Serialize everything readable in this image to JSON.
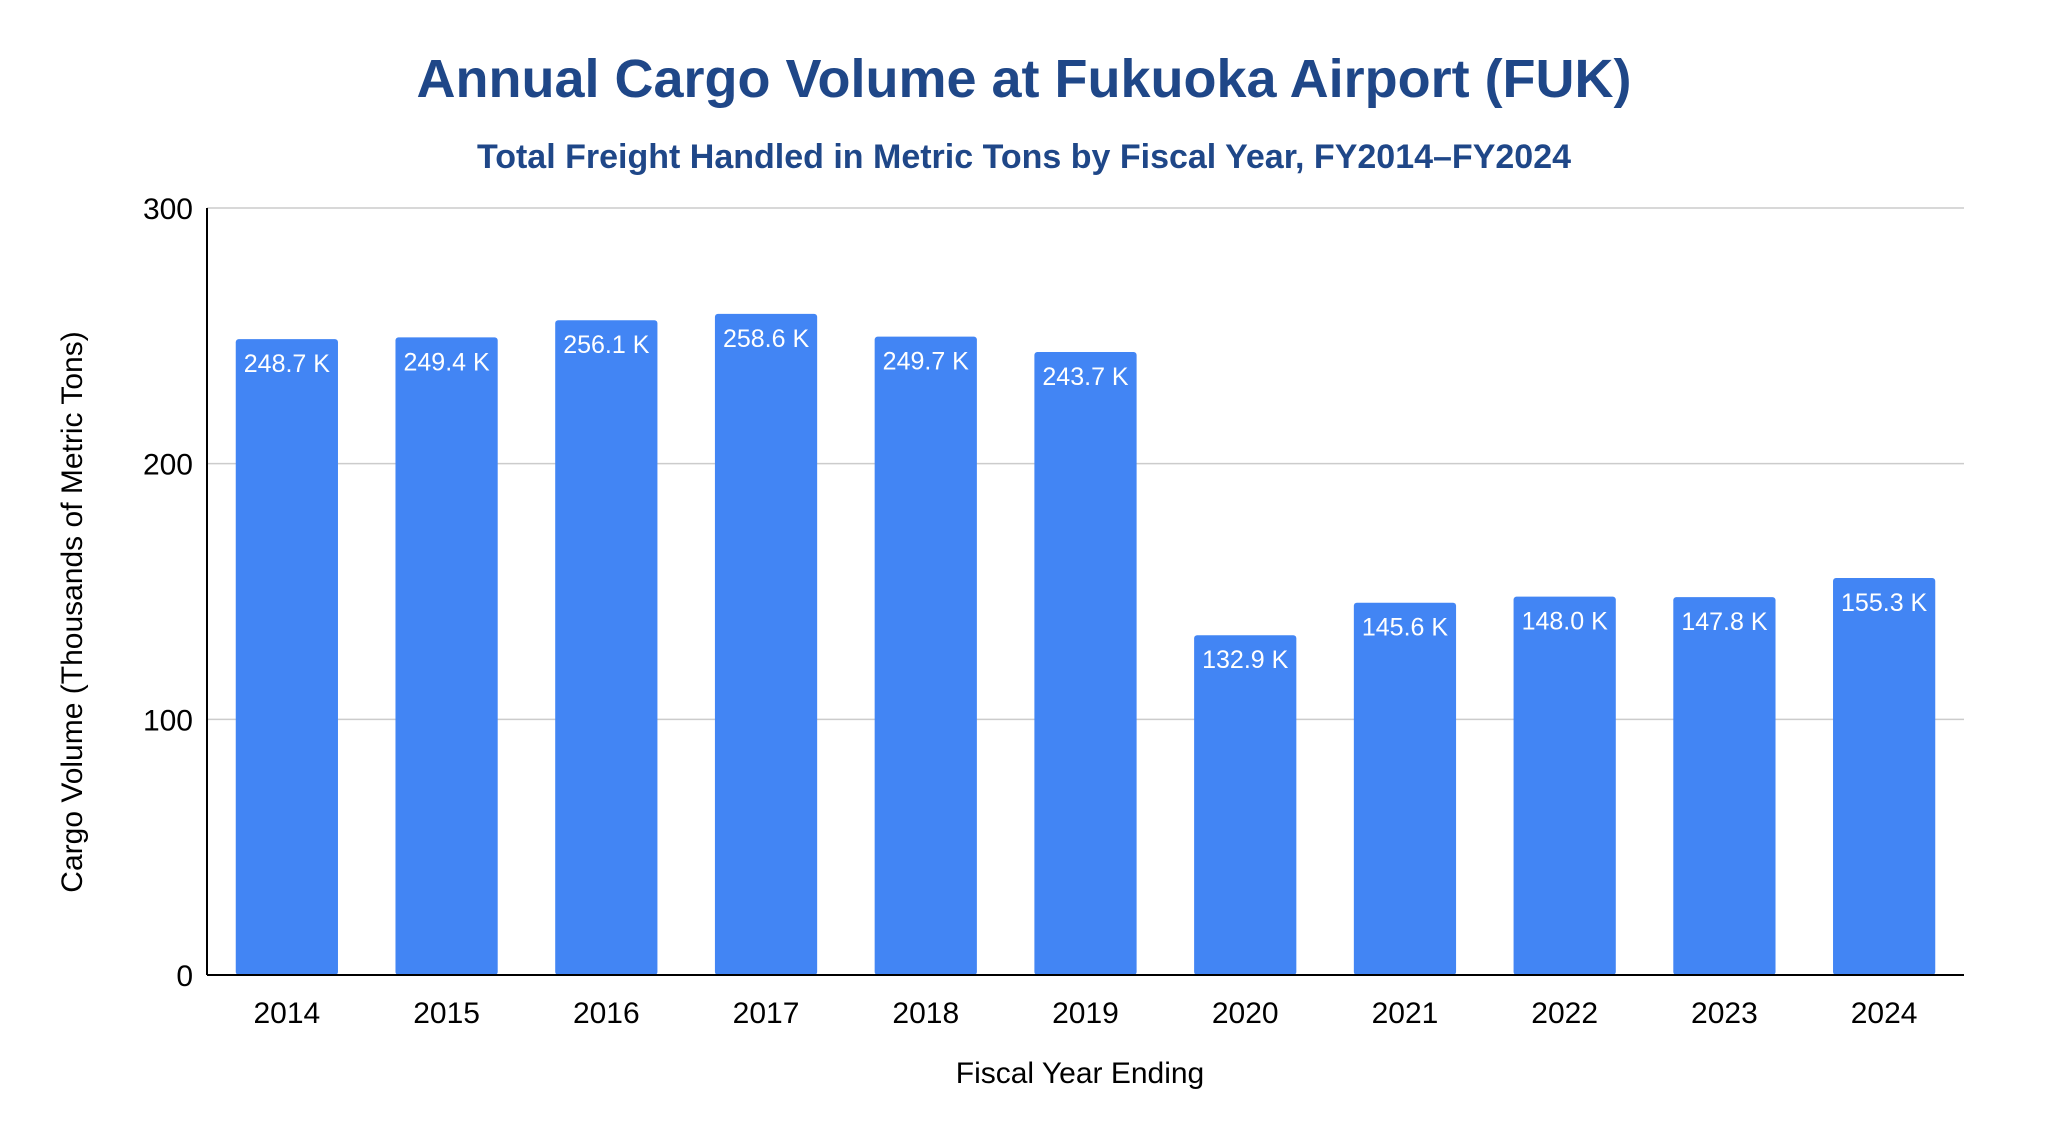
{
  "chart_data": {
    "type": "bar",
    "title": "Annual Cargo Volume at Fukuoka Airport (FUK)",
    "subtitle": "Total Freight Handled in Metric Tons by Fiscal Year, FY2014–FY2024",
    "xlabel": "Fiscal Year Ending",
    "ylabel": "Cargo Volume (Thousands of Metric Tons)",
    "categories": [
      "2014",
      "2015",
      "2016",
      "2017",
      "2018",
      "2019",
      "2020",
      "2021",
      "2022",
      "2023",
      "2024"
    ],
    "values": [
      248.7,
      249.4,
      256.1,
      258.6,
      249.7,
      243.7,
      132.9,
      145.6,
      148.0,
      147.8,
      155.3
    ],
    "data_labels": [
      "248.7 K",
      "249.4 K",
      "256.1 K",
      "258.6 K",
      "249.7 K",
      "243.7 K",
      "132.9 K",
      "145.6 K",
      "148.0 K",
      "147.8 K",
      "155.3 K"
    ],
    "ylim": [
      0,
      300
    ],
    "yticks": [
      "0",
      "100",
      "200",
      "300"
    ],
    "grid": true,
    "legend": "none",
    "colors": {
      "bar": "#4285f4",
      "title": "#1f4788",
      "gridline": "#cccccc",
      "axis": "#000000",
      "data_label": "#ffffff"
    }
  }
}
